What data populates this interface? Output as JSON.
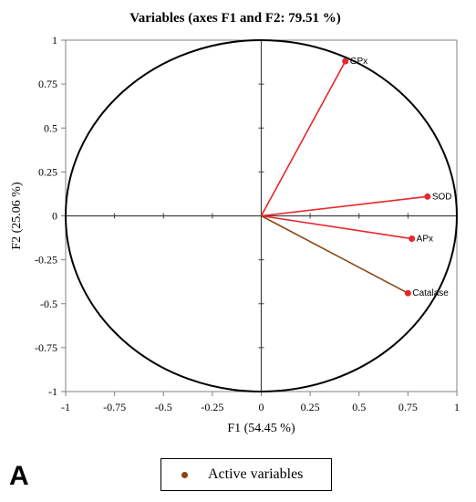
{
  "chart_data": {
    "type": "scatter",
    "title": "Variables (axes F1 and F2: 79.51 %)",
    "xlabel": "F1 (54.45 %)",
    "ylabel": "F2 (25.06 %)",
    "xlim": [
      -1,
      1
    ],
    "ylim": [
      -1,
      1
    ],
    "x_ticks": [
      "-1",
      "-0.75",
      "-0.5",
      "-0.25",
      "0",
      "0.25",
      "0.5",
      "0.75",
      "1"
    ],
    "y_ticks": [
      "1",
      "0.75",
      "0.5",
      "0.25",
      "0",
      "-0.25",
      "-0.5",
      "-0.75",
      "-1"
    ],
    "grid": false,
    "correlation_circle": true,
    "variables": [
      {
        "label": "GPx",
        "x": 0.43,
        "y": 0.88,
        "color": "#e8262b"
      },
      {
        "label": "SOD",
        "x": 0.85,
        "y": 0.11,
        "color": "#e8262b"
      },
      {
        "label": "APx",
        "x": 0.77,
        "y": -0.13,
        "color": "#e8262b"
      },
      {
        "label": "Catalase",
        "x": 0.75,
        "y": -0.44,
        "color": "#8b4513"
      }
    ],
    "legend": {
      "label": "Active variables",
      "position": "bottom",
      "marker_color": "#8b4513"
    }
  },
  "panel_label": "A"
}
